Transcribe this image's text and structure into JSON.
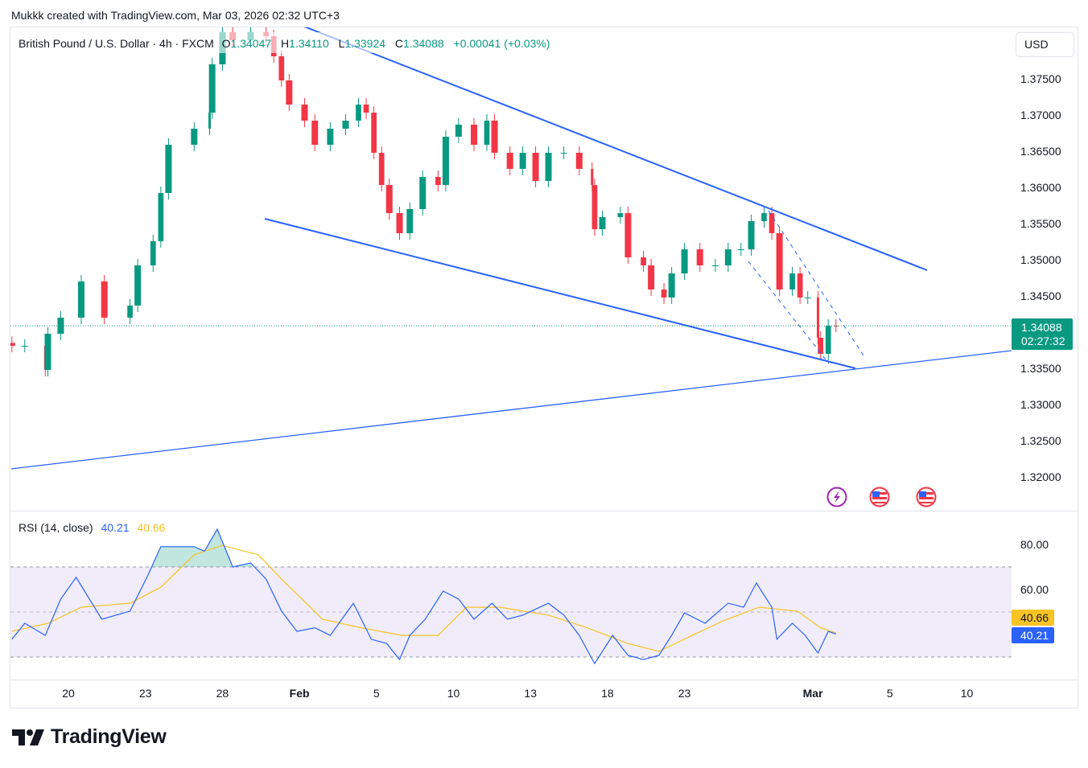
{
  "credit": "Mukkk created with TradingView.com, Mar 03, 2026 02:32 UTC+3",
  "legend": {
    "symbol": "British Pound / U.S. Dollar · 4h · FXCM",
    "o_label": "O",
    "o": "1.34047",
    "h_label": "H",
    "h": "1.34110",
    "l_label": "L",
    "l": "1.33924",
    "c_label": "C",
    "c": "1.34088",
    "change": "+0.00041 (+0.03%)"
  },
  "currency": "USD",
  "last_price": {
    "price": "1.34088",
    "countdown": "02:27:32"
  },
  "rsi_legend": {
    "label": "RSI (14, close)",
    "rsi": "40.21",
    "ma": "40.66"
  },
  "logo": "TradingView",
  "colors": {
    "up": "#089981",
    "down": "#f23645",
    "trend": "#2962ff",
    "rsi": "#2962ff",
    "rsi_ma": "#f7c325",
    "band": "#ede9f8"
  },
  "events": [
    "lightning-icon",
    "us-flag-icon",
    "us-flag-icon"
  ],
  "chart_data": [
    {
      "type": "candlestick",
      "title": "British Pound / U.S. Dollar · 4h · FXCM",
      "x_unit": "trading days since Jan 20",
      "ylim": [
        1.31533,
        1.38222
      ],
      "y_ticks": [
        "1.37500",
        "1.37000",
        "1.36500",
        "1.36000",
        "1.35500",
        "1.35000",
        "1.34500",
        "1.34000",
        "1.33500",
        "1.33000",
        "1.32500",
        "1.32000"
      ],
      "x_ticks": [
        {
          "d": 0,
          "label": "20"
        },
        {
          "d": 3,
          "label": "23"
        },
        {
          "d": 6,
          "label": "28"
        },
        {
          "d": 9,
          "label": "Feb"
        },
        {
          "d": 12,
          "label": "5"
        },
        {
          "d": 15,
          "label": "10"
        },
        {
          "d": 18,
          "label": "13"
        },
        {
          "d": 21,
          "label": "18"
        },
        {
          "d": 24,
          "label": "23"
        },
        {
          "d": 29,
          "label": "Mar"
        },
        {
          "d": 32,
          "label": "5"
        },
        {
          "d": 35,
          "label": "10"
        }
      ],
      "points": [
        [
          -2.2,
          1.33811
        ],
        [
          -1.7,
          1.33811
        ],
        [
          -0.9,
          1.33478
        ],
        [
          -0.8,
          1.33978
        ],
        [
          -0.3,
          1.342
        ],
        [
          0.5,
          1.347
        ],
        [
          1.4,
          1.342
        ],
        [
          2.4,
          1.34367
        ],
        [
          2.7,
          1.34922
        ],
        [
          3.3,
          1.35256
        ],
        [
          3.6,
          1.35922
        ],
        [
          3.9,
          1.36589
        ],
        [
          4.9,
          1.36811
        ],
        [
          5.5,
          1.37033
        ],
        [
          5.6,
          1.377
        ],
        [
          6.0,
          1.38144
        ],
        [
          6.4,
          1.38033
        ],
        [
          7.1,
          1.38144
        ],
        [
          7.7,
          1.38089
        ],
        [
          8.0,
          1.37811
        ],
        [
          8.3,
          1.37478
        ],
        [
          8.6,
          1.37144
        ],
        [
          9.2,
          1.36922
        ],
        [
          9.6,
          1.36589
        ],
        [
          10.2,
          1.36811
        ],
        [
          10.8,
          1.36922
        ],
        [
          11.3,
          1.37144
        ],
        [
          11.6,
          1.37033
        ],
        [
          11.9,
          1.36478
        ],
        [
          12.2,
          1.36033
        ],
        [
          12.5,
          1.35644
        ],
        [
          12.9,
          1.35367
        ],
        [
          13.3,
          1.357
        ],
        [
          13.8,
          1.36144
        ],
        [
          14.4,
          1.36033
        ],
        [
          14.7,
          1.367
        ],
        [
          15.2,
          1.36867
        ],
        [
          15.8,
          1.36589
        ],
        [
          16.3,
          1.36922
        ],
        [
          16.6,
          1.36478
        ],
        [
          17.2,
          1.36256
        ],
        [
          17.7,
          1.36478
        ],
        [
          18.2,
          1.36089
        ],
        [
          18.7,
          1.36478
        ],
        [
          19.3,
          1.36478
        ],
        [
          19.9,
          1.36256
        ],
        [
          20.4,
          1.36033
        ],
        [
          20.5,
          1.35422
        ],
        [
          20.8,
          1.35589
        ],
        [
          21.5,
          1.35644
        ],
        [
          21.8,
          1.35033
        ],
        [
          22.4,
          1.34922
        ],
        [
          22.7,
          1.34589
        ],
        [
          23.2,
          1.34478
        ],
        [
          23.5,
          1.34811
        ],
        [
          24.0,
          1.35144
        ],
        [
          24.6,
          1.34922
        ],
        [
          25.2,
          1.34922
        ],
        [
          25.7,
          1.35144
        ],
        [
          26.2,
          1.35144
        ],
        [
          26.6,
          1.35533
        ],
        [
          27.1,
          1.35644
        ],
        [
          27.4,
          1.35367
        ],
        [
          27.7,
          1.34589
        ],
        [
          28.2,
          1.34811
        ],
        [
          28.5,
          1.34478
        ],
        [
          28.8,
          1.34478
        ],
        [
          29.2,
          1.33922
        ],
        [
          29.3,
          1.337
        ],
        [
          29.6,
          1.34089
        ],
        [
          29.9,
          1.34088
        ]
      ],
      "last": 1.34088
    },
    {
      "type": "line",
      "title": "RSI (14, close)",
      "ylim": [
        30,
        80
      ],
      "y_ticks": [
        "80.00",
        "60.00"
      ],
      "bands": [
        70,
        50,
        30
      ],
      "series": [
        {
          "name": "RSI",
          "points": [
            [
              -2.2,
              37.9
            ],
            [
              -1.7,
              45
            ],
            [
              -0.9,
              39.6
            ],
            [
              -0.3,
              55.7
            ],
            [
              0.3,
              65.4
            ],
            [
              1.3,
              46.8
            ],
            [
              2.4,
              50.4
            ],
            [
              3.1,
              66.4
            ],
            [
              3.6,
              79
            ],
            [
              4.9,
              79
            ],
            [
              5.3,
              77
            ],
            [
              5.8,
              86.8
            ],
            [
              6.4,
              70
            ],
            [
              7.1,
              71.8
            ],
            [
              7.7,
              64.6
            ],
            [
              8.3,
              50.4
            ],
            [
              8.9,
              41.4
            ],
            [
              9.6,
              43
            ],
            [
              10.2,
              39.6
            ],
            [
              11.1,
              53.9
            ],
            [
              11.8,
              37.9
            ],
            [
              12.4,
              36
            ],
            [
              12.9,
              28.9
            ],
            [
              13.3,
              39.6
            ],
            [
              13.9,
              46.8
            ],
            [
              14.6,
              59.3
            ],
            [
              15.2,
              55.7
            ],
            [
              15.8,
              46.8
            ],
            [
              16.5,
              53.9
            ],
            [
              17.1,
              46.8
            ],
            [
              17.7,
              48.6
            ],
            [
              18.7,
              53.9
            ],
            [
              19.3,
              48.6
            ],
            [
              19.9,
              39.6
            ],
            [
              20.5,
              27.1
            ],
            [
              21.2,
              39.6
            ],
            [
              21.8,
              30.7
            ],
            [
              22.4,
              28.9
            ],
            [
              23.0,
              30.7
            ],
            [
              23.5,
              39.6
            ],
            [
              24.0,
              49.6
            ],
            [
              24.8,
              45
            ],
            [
              25.7,
              53.9
            ],
            [
              26.3,
              52.1
            ],
            [
              26.8,
              62.9
            ],
            [
              27.4,
              52.1
            ],
            [
              27.6,
              37.9
            ],
            [
              28.2,
              45
            ],
            [
              28.7,
              39.6
            ],
            [
              29.2,
              31.8
            ],
            [
              29.6,
              41.4
            ],
            [
              29.9,
              40.21
            ]
          ]
        },
        {
          "name": "RSI-based MA",
          "points": [
            [
              -2.2,
              41.4
            ],
            [
              -0.8,
              45
            ],
            [
              0.5,
              52.1
            ],
            [
              2.4,
              53.9
            ],
            [
              3.6,
              61
            ],
            [
              4.9,
              75.4
            ],
            [
              6.0,
              79.6
            ],
            [
              7.4,
              75.4
            ],
            [
              8.3,
              64.6
            ],
            [
              9.9,
              46.8
            ],
            [
              11.4,
              43
            ],
            [
              13.0,
              39.6
            ],
            [
              14.4,
              39.6
            ],
            [
              15.5,
              52.1
            ],
            [
              16.8,
              52.1
            ],
            [
              18.7,
              48.6
            ],
            [
              20.2,
              43
            ],
            [
              21.8,
              36
            ],
            [
              23.0,
              32.5
            ],
            [
              24.3,
              39.6
            ],
            [
              25.5,
              46
            ],
            [
              26.9,
              52.1
            ],
            [
              28.4,
              50.4
            ],
            [
              29.3,
              43
            ],
            [
              29.9,
              40.66
            ]
          ]
        }
      ]
    }
  ]
}
